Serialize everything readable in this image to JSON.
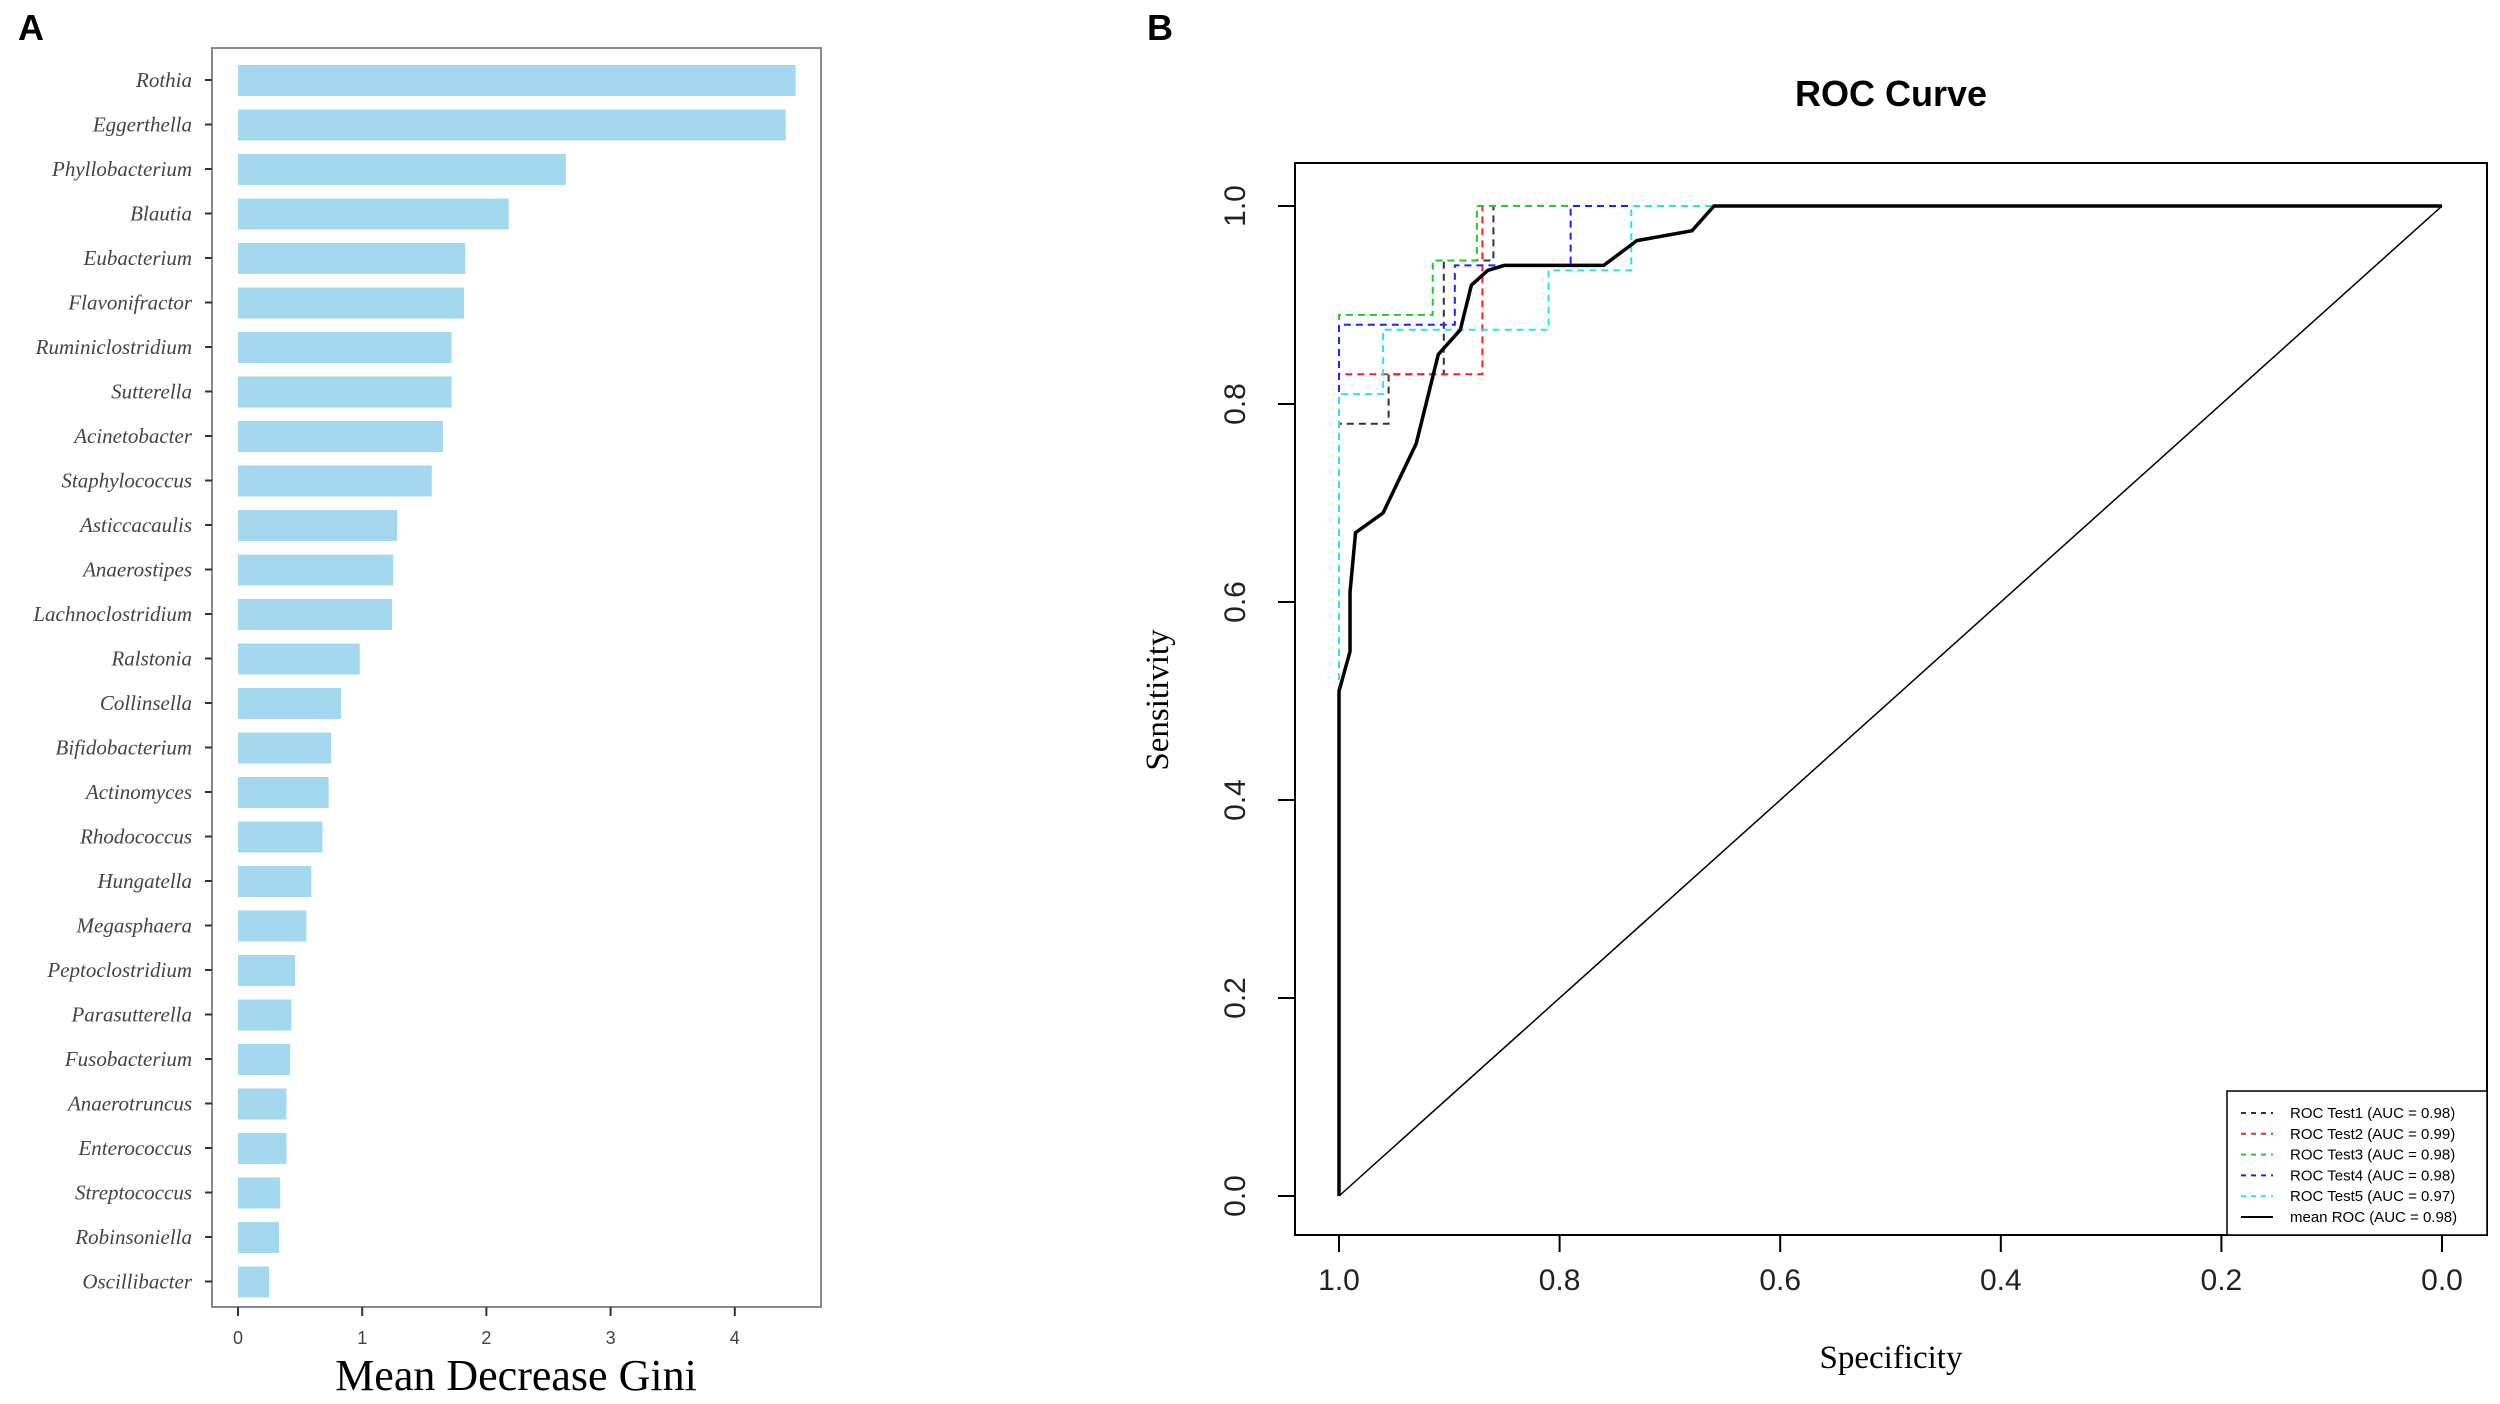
{
  "panels": {
    "a": "A",
    "b": "B"
  },
  "chart_data": [
    {
      "type": "bar",
      "orientation": "horizontal",
      "title": "",
      "xlabel": "Mean Decrease Gini",
      "ylabel": "",
      "xlim": [
        0,
        4.6
      ],
      "xticks": [
        0,
        1,
        2,
        3,
        4
      ],
      "bar_color": "#a3d8ef",
      "categories": [
        "Rothia",
        "Eggerthella",
        "Phyllobacterium",
        "Blautia",
        "Eubacterium",
        "Flavonifractor",
        "Ruminiclostridium",
        "Sutterella",
        "Acinetobacter",
        "Staphylococcus",
        "Asticcacaulis",
        "Anaerostipes",
        "Lachnoclostridium",
        "Ralstonia",
        "Collinsella",
        "Bifidobacterium",
        "Actinomyces",
        "Rhodococcus",
        "Hungatella",
        "Megasphaera",
        "Peptoclostridium",
        "Parasutterella",
        "Fusobacterium",
        "Anaerotruncus",
        "Enterococcus",
        "Streptococcus",
        "Robinsoniella",
        "Oscillibacter"
      ],
      "values": [
        4.49,
        4.41,
        2.64,
        2.18,
        1.83,
        1.82,
        1.72,
        1.72,
        1.65,
        1.56,
        1.28,
        1.25,
        1.24,
        0.98,
        0.83,
        0.75,
        0.73,
        0.68,
        0.59,
        0.55,
        0.46,
        0.43,
        0.42,
        0.39,
        0.39,
        0.34,
        0.33,
        0.25
      ]
    },
    {
      "type": "line",
      "title": "ROC Curve",
      "xlabel": "Specificity",
      "ylabel": "Sensitivity",
      "xlim": [
        1.0,
        0.0
      ],
      "ylim": [
        0,
        1
      ],
      "xticks": [
        "1.0",
        "0.8",
        "0.6",
        "0.4",
        "0.2",
        "0.0"
      ],
      "yticks": [
        "0.0",
        "0.2",
        "0.4",
        "0.6",
        "0.8",
        "1.0"
      ],
      "legend_position": "bottom-right",
      "series": [
        {
          "name": "ROC Test1 (AUC = 0.98)",
          "color": "#333333",
          "dash": true,
          "x": [
            1,
            1,
            0.955,
            0.955,
            0.905,
            0.905,
            0.86,
            0.86,
            0
          ],
          "y": [
            0,
            0.78,
            0.78,
            0.83,
            0.83,
            0.945,
            0.945,
            1,
            1
          ]
        },
        {
          "name": "ROC Test2 (AUC = 0.99)",
          "color": "#ff2020",
          "dash": true,
          "x": [
            1,
            1,
            0.87,
            0.87,
            0
          ],
          "y": [
            0,
            0.83,
            0.83,
            1,
            1
          ]
        },
        {
          "name": "ROC Test3 (AUC = 0.98)",
          "color": "#22cc22",
          "dash": true,
          "x": [
            1,
            1,
            0.915,
            0.915,
            0.875,
            0.875,
            0
          ],
          "y": [
            0,
            0.89,
            0.89,
            0.945,
            0.945,
            1,
            1
          ]
        },
        {
          "name": "ROC Test4 (AUC = 0.98)",
          "color": "#2020ff",
          "dash": true,
          "x": [
            1,
            1,
            0.895,
            0.895,
            0.79,
            0.79,
            0
          ],
          "y": [
            0,
            0.88,
            0.88,
            0.94,
            0.94,
            1,
            1
          ]
        },
        {
          "name": "ROC Test5 (AUC = 0.97)",
          "color": "#22e5f0",
          "dash": true,
          "x": [
            1,
            1,
            0.96,
            0.96,
            0.81,
            0.81,
            0.735,
            0.735,
            0
          ],
          "y": [
            0,
            0.81,
            0.81,
            0.875,
            0.875,
            0.935,
            0.935,
            1,
            1
          ]
        },
        {
          "name": "mean ROC (AUC = 0.98)",
          "color": "#000000",
          "dash": false,
          "x": [
            1,
            1,
            0.99,
            0.99,
            0.985,
            0.96,
            0.93,
            0.91,
            0.89,
            0.88,
            0.865,
            0.85,
            0.76,
            0.73,
            0.68,
            0.66,
            0
          ],
          "y": [
            0,
            0.51,
            0.55,
            0.61,
            0.67,
            0.69,
            0.76,
            0.85,
            0.875,
            0.92,
            0.935,
            0.94,
            0.94,
            0.965,
            0.975,
            1,
            1
          ]
        }
      ]
    }
  ]
}
